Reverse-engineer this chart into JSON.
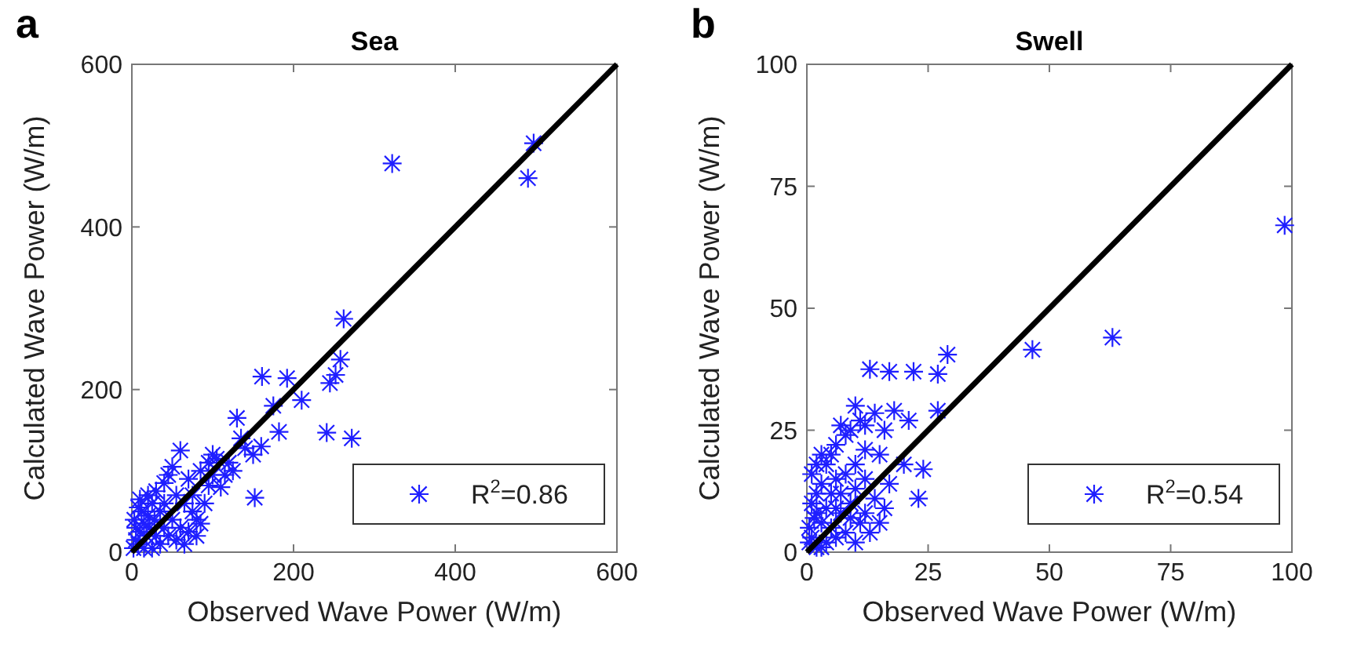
{
  "chart_data": [
    {
      "type": "scatter",
      "title": "Sea",
      "xlabel": "Observed Wave Power (W/m)",
      "ylabel": "Calculated Wave Power (W/m)",
      "annotations": [
        "a"
      ],
      "xlim": [
        0,
        600
      ],
      "ylim": [
        0,
        600
      ],
      "xticks": [
        0,
        200,
        400,
        600
      ],
      "yticks": [
        0,
        200,
        400,
        600
      ],
      "grid": false,
      "legend": "bottom right",
      "series": [
        {
          "name": "R$^{2}$=0.86",
          "color": "#1f1fff",
          "marker": "cross",
          "x": [
            497,
            490,
            322,
            262,
            258,
            252,
            245,
            241,
            272,
            161,
            192,
            210,
            175,
            160,
            182,
            150,
            130,
            140,
            120,
            105,
            100,
            95,
            110,
            152,
            85,
            70,
            60,
            50,
            45,
            40,
            65,
            75,
            80,
            55,
            30,
            25,
            35,
            20,
            15,
            10,
            5,
            2,
            8,
            12,
            18,
            22,
            28,
            40,
            50,
            60,
            70,
            80,
            85,
            90,
            45,
            35,
            25,
            15,
            5,
            3,
            8,
            30,
            55,
            65,
            75,
            95,
            115,
            125,
            135,
            100,
            20,
            10,
            40
          ],
          "values": [
            503,
            460,
            478,
            287,
            237,
            218,
            208,
            147,
            140,
            216,
            214,
            187,
            180,
            130,
            148,
            120,
            165,
            128,
            110,
            115,
            95,
            82,
            80,
            67,
            100,
            90,
            125,
            105,
            95,
            85,
            60,
            50,
            40,
            70,
            75,
            60,
            50,
            45,
            35,
            25,
            15,
            5,
            10,
            50,
            20,
            30,
            40,
            30,
            40,
            30,
            25,
            20,
            35,
            60,
            20,
            10,
            5,
            5,
            30,
            40,
            55,
            20,
            15,
            10,
            70,
            110,
            95,
            100,
            140,
            120,
            70,
            65,
            60
          ]
        },
        {
          "type": "line",
          "color": "#000000",
          "x": [
            0,
            600
          ],
          "values": [
            0,
            600
          ],
          "marker": "none"
        }
      ]
    },
    {
      "type": "scatter",
      "title": "Swell",
      "xlabel": "Observed Wave Power (W/m)",
      "ylabel": "Calculated Wave Power (W/m)",
      "annotations": [
        "b"
      ],
      "xlim": [
        0,
        100
      ],
      "ylim": [
        0,
        100
      ],
      "xticks": [
        0,
        25,
        50,
        75,
        100
      ],
      "yticks": [
        0,
        25,
        50,
        75,
        100
      ],
      "grid": false,
      "legend": "bottom right",
      "series": [
        {
          "name": "R$^{2}$=0.54",
          "color": "#1f1fff",
          "marker": "cross",
          "x": [
            98.5,
            63,
            46.5,
            29,
            27,
            22,
            17,
            13,
            27,
            21,
            18,
            16,
            14,
            12,
            10,
            11,
            7,
            8,
            9,
            5,
            6,
            20,
            15,
            24,
            23,
            16,
            17,
            14,
            12,
            8,
            10,
            6,
            4,
            3,
            2,
            1,
            2,
            3,
            5,
            7,
            9,
            11,
            13,
            4,
            2,
            1,
            0.5,
            1,
            2,
            3,
            6,
            8,
            10,
            5,
            7,
            12,
            4,
            1.5,
            0.5,
            3,
            6,
            9,
            15,
            12,
            10
          ],
          "values": [
            67,
            44,
            41.5,
            40.5,
            36.5,
            37,
            37,
            37.5,
            29,
            27,
            29,
            25,
            28.5,
            26,
            30,
            27,
            26,
            24,
            25,
            20,
            22,
            18,
            20,
            17,
            11,
            9,
            14,
            11,
            15,
            16,
            13,
            15,
            18,
            14,
            12,
            10,
            8,
            6,
            5,
            8,
            10,
            6,
            4,
            2,
            1,
            3,
            5,
            16,
            18,
            20,
            9,
            4,
            2,
            12,
            12,
            8,
            9,
            7,
            2,
            1,
            3,
            7,
            6,
            21,
            18
          ]
        },
        {
          "type": "line",
          "color": "#000000",
          "x": [
            0,
            100
          ],
          "values": [
            0,
            100
          ],
          "marker": "none"
        }
      ]
    }
  ]
}
